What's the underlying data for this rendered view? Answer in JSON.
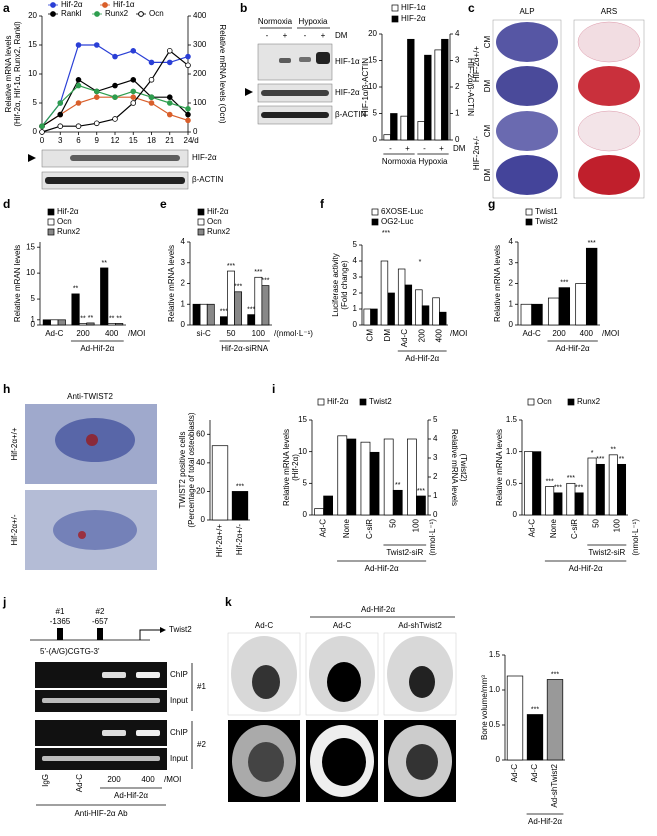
{
  "figure": {
    "panels": [
      "a",
      "b",
      "c",
      "d",
      "e",
      "f",
      "g",
      "h",
      "i",
      "j",
      "k"
    ],
    "a_blot": [
      "HIF-2α",
      "β-ACTIN"
    ],
    "b_blot": {
      "conditions": [
        "Normoxia",
        "Hypoxia"
      ],
      "treatment": "DM",
      "signs": [
        "-",
        "+",
        "-",
        "+"
      ],
      "bands": [
        "HIF-1α",
        "HIF-2α",
        "β-ACTIN"
      ]
    },
    "c_stain": {
      "stains": [
        "ALP",
        "ARS"
      ],
      "genotypes": [
        "HIF-2α+/+",
        "HIF-2α+/-"
      ],
      "media": [
        "CM",
        "DM",
        "CM",
        "DM"
      ]
    },
    "h_image": {
      "title": "Anti-TWIST2",
      "genotypes": [
        "Hif-2α+/+",
        "Hif-2α+/-"
      ]
    },
    "j_chip": {
      "sites": [
        "#1",
        "#2"
      ],
      "positions": [
        "-1365",
        "-657"
      ],
      "gene": "Twist2",
      "motif": "5'-(A/G)CGTG-3'",
      "rows": [
        "ChIP",
        "Input",
        "ChIP",
        "Input"
      ],
      "row_groups": [
        "#1",
        "#2"
      ],
      "lanes": [
        "IgG",
        "Ad-C",
        "200",
        "400"
      ],
      "unit": "/MOI",
      "group": "Ad-Hif-2α",
      "antibody": "Anti-HIF-2α Ab"
    },
    "k_images": {
      "header": "Ad-Hif-2α",
      "columns": [
        "Ad-C",
        "Ad-C",
        "Ad-shTwist2"
      ]
    }
  },
  "chart_data": [
    {
      "type": "line",
      "x": [
        0,
        3,
        6,
        9,
        12,
        15,
        18,
        21,
        24
      ],
      "xlim": [
        0,
        24
      ],
      "xticks": [
        0,
        3,
        6,
        9,
        12,
        15,
        18,
        21,
        24
      ],
      "xunit": "/d",
      "ylim": [
        0,
        20
      ],
      "yticks": [
        0,
        5,
        10,
        15,
        20
      ],
      "y2lim": [
        0,
        400
      ],
      "y2ticks": [
        0,
        100,
        200,
        300,
        400
      ],
      "ylabel": [
        "Relative mRNA levels",
        "(Hif-2α, Hif-1α, Runx2, Rankl)"
      ],
      "y2label": [
        "Relative mRNA levels (Ocn)"
      ],
      "series": [
        {
          "name": "Hif-2α",
          "color": "#2a3fd6",
          "values": [
            1,
            5,
            15,
            15,
            13,
            14,
            12,
            12,
            13
          ]
        },
        {
          "name": "Hif-1α",
          "color": "#d95f2b",
          "values": [
            1,
            3,
            5,
            6,
            6,
            6,
            5,
            3,
            2
          ]
        },
        {
          "name": "Rankl",
          "color": "#000000",
          "values": [
            1,
            3,
            9,
            7,
            8,
            9,
            6,
            6,
            3
          ]
        },
        {
          "name": "Runx2",
          "color": "#2e9e4f",
          "values": [
            1,
            5,
            8,
            7,
            6,
            7,
            6,
            5,
            4
          ]
        },
        {
          "name": "Ocn",
          "color": "#ffffff",
          "axis": "y2",
          "values": [
            0,
            20,
            20,
            30,
            45,
            100,
            180,
            280,
            230
          ]
        }
      ]
    },
    {
      "type": "bar",
      "categories": [
        "-",
        "+",
        "-",
        "+"
      ],
      "xrow_label": "DM",
      "xgroup_labels": [
        "Normoxia",
        "Hypoxia"
      ],
      "ylim": [
        0,
        20
      ],
      "yticks": [
        0,
        5,
        10,
        15,
        20
      ],
      "y2lim": [
        0,
        4
      ],
      "y2ticks": [
        0,
        1,
        2,
        3,
        4
      ],
      "ylabel": [
        "HIF-1α/β-ACTIN"
      ],
      "y2label": [
        "HIF-2α/β-ACTIN"
      ],
      "series": [
        {
          "name": "HIF-1α",
          "color": "#ffffff",
          "values": [
            1,
            4.5,
            3.5,
            17
          ]
        },
        {
          "name": "HIF-2α",
          "color": "#000000",
          "axis": "y2",
          "values": [
            1,
            3.8,
            3.2,
            3.8
          ]
        }
      ]
    },
    {
      "type": "bar",
      "categories": [
        "Ad-C",
        "200",
        "400"
      ],
      "xunit": "/MOI",
      "xgroup_labels": [
        "Ad-Hif-2α"
      ],
      "ylim": [
        0,
        16
      ],
      "yticks": [
        0,
        1,
        5,
        10,
        15
      ],
      "ylabel": [
        "Relative mRAN levels"
      ],
      "series": [
        {
          "name": "Hif-2α",
          "color": "#000000",
          "values": [
            1,
            6,
            11
          ],
          "significance": [
            null,
            "**",
            "**"
          ]
        },
        {
          "name": "Ocn",
          "color": "#ffffff",
          "values": [
            1,
            0.3,
            0.3
          ],
          "significance": [
            null,
            "**",
            "**"
          ]
        },
        {
          "name": "Runx2",
          "color": "#888888",
          "values": [
            1,
            0.4,
            0.3
          ],
          "significance": [
            null,
            "**",
            "**"
          ]
        }
      ]
    },
    {
      "type": "bar",
      "categories": [
        "si-C",
        "50",
        "100"
      ],
      "xunit": "/(nmol·L⁻¹)",
      "xgroup_labels": [
        "Hif-2α-siRNA"
      ],
      "ylim": [
        0,
        4
      ],
      "yticks": [
        0,
        1,
        2,
        3,
        4
      ],
      "ylabel": [
        "Relative mRNA levels"
      ],
      "series": [
        {
          "name": "Hif-2α",
          "color": "#000000",
          "values": [
            1,
            0.4,
            0.5
          ],
          "significance": [
            null,
            "***",
            "***"
          ]
        },
        {
          "name": "Ocn",
          "color": "#ffffff",
          "values": [
            1,
            2.6,
            2.3
          ],
          "significance": [
            null,
            "***",
            "***"
          ]
        },
        {
          "name": "Runx2",
          "color": "#888888",
          "values": [
            1,
            1.6,
            1.9
          ],
          "significance": [
            null,
            "***",
            "***"
          ]
        }
      ]
    },
    {
      "type": "bar",
      "categories": [
        "CM",
        "DM",
        "Ad-C",
        "200",
        "400"
      ],
      "xunit": "/MOI",
      "xgroup_labels": [
        "Ad-Hif-2α"
      ],
      "ylim": [
        0,
        5
      ],
      "yticks": [
        0,
        1,
        2,
        3,
        4,
        5
      ],
      "ylabel": [
        "Luciferase activity",
        "(Fold change)"
      ],
      "annotations": [
        "***",
        "*"
      ],
      "series": [
        {
          "name": "6XOSE-Luc",
          "color": "#ffffff",
          "values": [
            1,
            4,
            3.5,
            2.2,
            1.7
          ]
        },
        {
          "name": "OG2-Luc",
          "color": "#000000",
          "values": [
            1,
            2,
            2.5,
            1.2,
            0.8
          ]
        }
      ]
    },
    {
      "type": "bar",
      "categories": [
        "Ad-C",
        "200",
        "400"
      ],
      "xunit": "/MOI",
      "xgroup_labels": [
        "Ad-Hif-2α"
      ],
      "ylim": [
        0,
        4
      ],
      "yticks": [
        0,
        1,
        2,
        3,
        4
      ],
      "ylabel": [
        "Relative mRNA levels"
      ],
      "series": [
        {
          "name": "Twist1",
          "color": "#ffffff",
          "values": [
            1,
            1.3,
            2
          ]
        },
        {
          "name": "Twist2",
          "color": "#000000",
          "values": [
            1,
            1.8,
            3.7
          ],
          "significance": [
            null,
            "***",
            "***"
          ]
        }
      ]
    },
    {
      "type": "bar",
      "categories": [
        "Hif-2α+/+",
        "Hif-2α+/-"
      ],
      "values": [
        52,
        20
      ],
      "colors": [
        "#ffffff",
        "#000000"
      ],
      "significance": [
        null,
        "***"
      ],
      "ylim": [
        0,
        70
      ],
      "yticks": [
        0,
        20,
        40,
        60
      ],
      "ylabel": [
        "TWIST2 positive cells",
        "(Percentage of total osteoblasts)"
      ]
    },
    {
      "type": "bar",
      "categories": [
        "Ad-C",
        "None",
        "C-siR",
        "50",
        "100"
      ],
      "xunit": "(nmol·L⁻¹)",
      "xgroup_labels": [
        "Twist2-siR",
        "Ad-Hif-2α"
      ],
      "ylim": [
        0,
        15
      ],
      "yticks": [
        0,
        5,
        10,
        15
      ],
      "y2lim": [
        0,
        5
      ],
      "y2ticks": [
        0,
        1,
        2,
        3,
        4,
        5
      ],
      "ylabel": [
        "Relative mRNA levels",
        "(Hif-2α)"
      ],
      "y2label": [
        "Relative mRNA levels",
        "(Twist2)"
      ],
      "series": [
        {
          "name": "Hif-2α",
          "color": "#ffffff",
          "values": [
            1,
            12.5,
            11.5,
            12,
            12
          ]
        },
        {
          "name": "Twist2",
          "color": "#000000",
          "axis": "y2",
          "values": [
            1,
            4,
            3.3,
            1.3,
            1
          ],
          "significance": [
            null,
            null,
            null,
            "**",
            "***"
          ]
        }
      ]
    },
    {
      "type": "bar",
      "categories": [
        "Ad-C",
        "None",
        "C-siR",
        "50",
        "100"
      ],
      "xunit": "(nmol·L⁻¹)",
      "xgroup_labels": [
        "Twist2-siR",
        "Ad-Hif-2α"
      ],
      "ylim": [
        0,
        1.5
      ],
      "yticks": [
        0,
        0.5,
        {
          "value": 1,
          "label": "1.0"
        },
        1.5
      ],
      "ylabel": [
        "Relative mRNA levels"
      ],
      "series": [
        {
          "name": "Ocn",
          "color": "#ffffff",
          "values": [
            1,
            0.45,
            0.5,
            0.9,
            0.95
          ],
          "significance": [
            null,
            "***",
            "***",
            "*",
            "**"
          ]
        },
        {
          "name": "Runx2",
          "color": "#000000",
          "values": [
            1,
            0.35,
            0.35,
            0.8,
            0.8
          ],
          "significance": [
            null,
            "***",
            "***",
            "***",
            "**"
          ]
        }
      ]
    },
    {
      "type": "bar",
      "categories": [
        "Ad-C",
        "Ad-C",
        "Ad-shTwist2"
      ],
      "values": [
        1.2,
        0.65,
        1.15
      ],
      "colors": [
        "#ffffff",
        "#000000",
        "#999999"
      ],
      "significance": [
        null,
        "***",
        "***"
      ],
      "xgroup_labels": [
        "Ad-Hif-2α"
      ],
      "ylim": [
        0,
        1.5
      ],
      "yticks": [
        0,
        0.5,
        {
          "value": 1,
          "label": "1.0"
        },
        1.5
      ],
      "ylabel": [
        "Bone volume/mm³"
      ]
    }
  ]
}
